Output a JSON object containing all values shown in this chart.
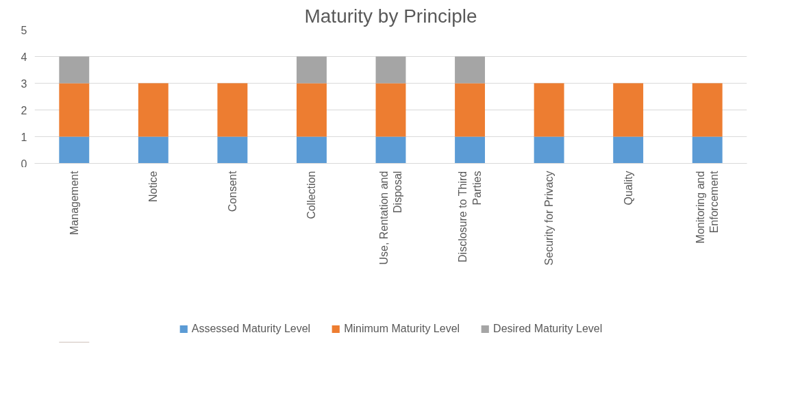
{
  "chart_data": {
    "type": "bar",
    "stacked": true,
    "title": "Maturity by Principle",
    "categories": [
      "Management",
      "Notice",
      "Consent",
      "Collection",
      "Use, Rentation and Disposal",
      "Disclosure to Third Parties",
      "Security for Privacy",
      "Quality",
      "Monitoring and Enforcement"
    ],
    "series": [
      {
        "name": "Assessed Maturity Level",
        "color": "#5b9bd5",
        "values": [
          1,
          1,
          1,
          1,
          1,
          1,
          1,
          1,
          1
        ]
      },
      {
        "name": "Minimum Maturity Level",
        "color": "#ed7d31",
        "values": [
          2,
          2,
          2,
          2,
          2,
          2,
          2,
          2,
          2
        ]
      },
      {
        "name": "Desired Maturity Level",
        "color": "#a5a5a5",
        "values": [
          1,
          null,
          null,
          1,
          1,
          1,
          null,
          null,
          null
        ]
      }
    ],
    "ylim": [
      0,
      5
    ],
    "yticks": [
      0,
      1,
      2,
      3,
      4,
      5
    ],
    "grid": "y",
    "legend": "bottom"
  }
}
